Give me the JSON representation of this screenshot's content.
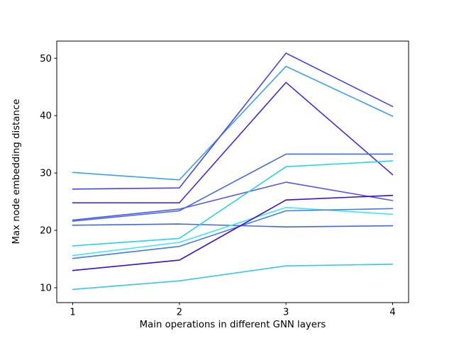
{
  "chart_data": {
    "type": "line",
    "title": "",
    "xlabel": "Main operations in different GNN layers",
    "ylabel": "Max node embedding distance",
    "x": [
      1,
      2,
      3,
      4
    ],
    "xtick_labels": [
      "1",
      "2",
      "3",
      "4"
    ],
    "ytick_values": [
      10,
      20,
      30,
      40,
      50
    ],
    "ytick_labels": [
      "10",
      "20",
      "30",
      "40",
      "50"
    ],
    "xlim": [
      0.85,
      4.15
    ],
    "ylim": [
      7.4,
      53.0
    ],
    "grid": false,
    "legend": "none",
    "axis_color": "#000000",
    "background_color": "#ffffff",
    "series": [
      {
        "name": "line-1",
        "color": "#3da0f5",
        "values": [
          30.1,
          28.8,
          48.6,
          39.9
        ]
      },
      {
        "name": "line-2",
        "color": "#4945f0",
        "values": [
          27.2,
          27.4,
          50.9,
          41.6
        ]
      },
      {
        "name": "line-3",
        "color": "#4b2ae0",
        "values": [
          24.8,
          24.8,
          45.8,
          29.7
        ]
      },
      {
        "name": "line-4",
        "color": "#5458ee",
        "values": [
          21.8,
          23.7,
          28.4,
          25.2
        ]
      },
      {
        "name": "line-5",
        "color": "#3f6ceb",
        "values": [
          21.6,
          23.4,
          33.3,
          33.3
        ]
      },
      {
        "name": "line-6",
        "color": "#4168e1",
        "values": [
          20.9,
          21.1,
          20.6,
          20.8
        ]
      },
      {
        "name": "line-7",
        "color": "#25d3f0",
        "values": [
          17.3,
          18.6,
          31.1,
          32.1
        ]
      },
      {
        "name": "line-8",
        "color": "#40e6f7",
        "values": [
          15.6,
          17.9,
          24.0,
          22.8
        ]
      },
      {
        "name": "line-9",
        "color": "#4478ea",
        "values": [
          15.1,
          17.2,
          23.4,
          23.8
        ]
      },
      {
        "name": "line-10",
        "color": "#3a0cd8",
        "values": [
          13.0,
          14.8,
          25.3,
          26.1
        ]
      },
      {
        "name": "line-11",
        "color": "#38c4f0",
        "values": [
          9.7,
          11.2,
          13.8,
          14.1
        ]
      }
    ]
  }
}
